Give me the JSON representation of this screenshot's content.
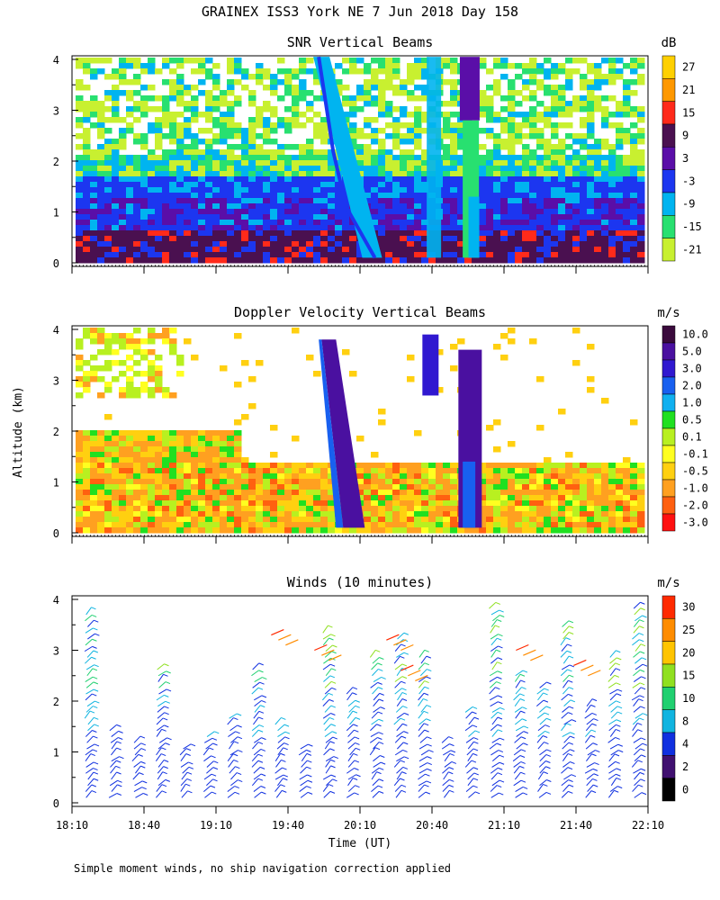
{
  "figure": {
    "title": "GRAINEX ISS3 York NE   7 Jun 2018 Day 158",
    "footnote": "Simple moment winds, no ship navigation correction applied",
    "ylabel": "Altitude (km)",
    "xlabel": "Time (UT)"
  },
  "chart_data": [
    {
      "type": "heatmap",
      "title": "SNR Vertical Beams",
      "colorbar_unit": "dB",
      "colorbar_labels": [
        "27",
        "21",
        "15",
        "9",
        "3",
        "-3",
        "-9",
        "-15",
        "-21"
      ],
      "colorbar_colors": [
        "#ffd000",
        "#ff9800",
        "#ff2a1a",
        "#4a1050",
        "#5a0ea8",
        "#1c36f0",
        "#00b4f0",
        "#28e070",
        "#c8f030"
      ],
      "y_ticks": [
        "0",
        "1",
        "2",
        "3",
        "4"
      ],
      "ylim": [
        0,
        4
      ],
      "layers": [
        {
          "from_km": 0.1,
          "to_km": 0.6,
          "value_db": 9
        },
        {
          "from_km": 0.6,
          "to_km": 1.3,
          "value_db": 3
        },
        {
          "from_km": 1.3,
          "to_km": 1.6,
          "value_db": -3
        },
        {
          "from_km": 1.6,
          "to_km": 2.0,
          "value_db": -15
        },
        {
          "from_km": 2.0,
          "to_km": 4.0,
          "value_db": -21
        }
      ]
    },
    {
      "type": "heatmap",
      "title": "Doppler Velocity Vertical Beams",
      "colorbar_unit": "m/s",
      "colorbar_labels": [
        "10.0",
        "5.0",
        "3.0",
        "2.0",
        "1.0",
        "0.5",
        "0.1",
        "-0.1",
        "-0.5",
        "-1.0",
        "-2.0",
        "-3.0"
      ],
      "colorbar_colors": [
        "#3a0a3c",
        "#4a10a0",
        "#3018d0",
        "#1860f0",
        "#10b0f0",
        "#20e020",
        "#b8f020",
        "#ffff20",
        "#ffd010",
        "#ffa020",
        "#ff6010",
        "#ff1010"
      ],
      "y_ticks": [
        "0",
        "1",
        "2",
        "3",
        "4"
      ],
      "ylim": [
        0,
        4
      ],
      "layers": [
        {
          "from_km": 0.1,
          "to_km": 1.4,
          "value_ms": -1.0
        },
        {
          "from_km": 1.4,
          "to_km": 2.0,
          "value_ms": -0.5
        },
        {
          "from_km": 2.8,
          "to_km": 3.8,
          "value_ms": 0.1
        }
      ]
    },
    {
      "type": "scatter",
      "title": "Winds (10 minutes)",
      "colorbar_unit": "m/s",
      "colorbar_labels": [
        "30",
        "25",
        "20",
        "15",
        "10",
        "8",
        "4",
        "2",
        "0"
      ],
      "colorbar_colors": [
        "#ff2a00",
        "#ff8c00",
        "#ffc400",
        "#90e020",
        "#20d070",
        "#10b4e0",
        "#1030e0",
        "#401070",
        "#000000"
      ],
      "y_ticks": [
        "0",
        "1",
        "2",
        "3",
        "4"
      ],
      "ylim": [
        0,
        4
      ],
      "x_ticks": [
        "18:10",
        "18:40",
        "19:10",
        "19:40",
        "20:10",
        "20:40",
        "21:10",
        "21:40",
        "22:10"
      ],
      "x_tick_hours": [
        18.1667,
        18.6667,
        19.1667,
        19.6667,
        20.1667,
        20.6667,
        21.1667,
        21.6667,
        22.1667
      ],
      "xlim": [
        "18:10",
        "22:10"
      ]
    }
  ]
}
